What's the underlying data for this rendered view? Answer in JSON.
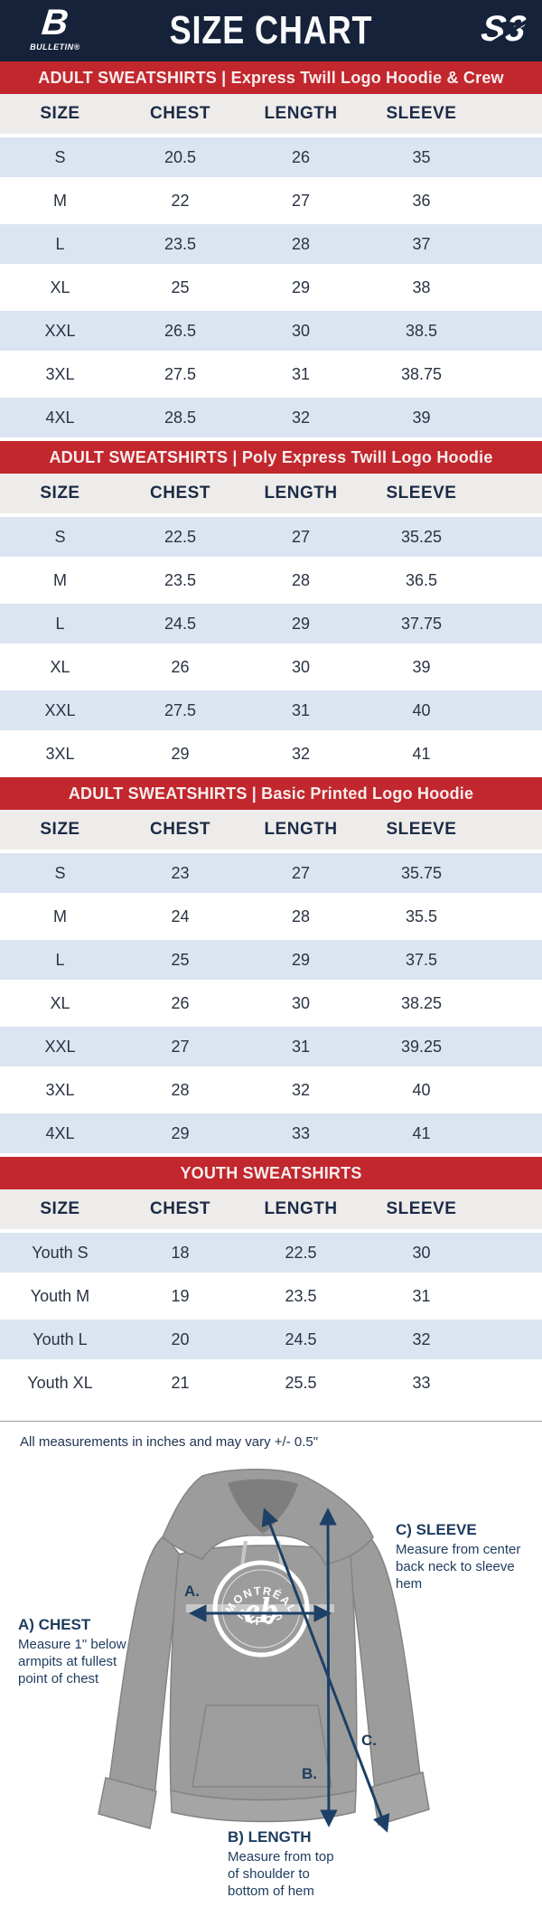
{
  "header": {
    "title": "SIZE CHART",
    "brand_left_mark": "B",
    "brand_left_word": "BULLETIN®",
    "brand_right_mark": "S3"
  },
  "colors": {
    "navy": "#15223a",
    "red": "#c1272d",
    "rowblue": "#dbe5f1",
    "headgray": "#eeecea",
    "textnavy": "#1c2b47",
    "arrow": "#1c4066"
  },
  "columns": [
    "SIZE",
    "CHEST",
    "LENGTH",
    "SLEEVE"
  ],
  "sections": [
    {
      "title": "ADULT SWEATSHIRTS | Express Twill Logo Hoodie & Crew",
      "rows": [
        [
          "S",
          "20.5",
          "26",
          "35"
        ],
        [
          "M",
          "22",
          "27",
          "36"
        ],
        [
          "L",
          "23.5",
          "28",
          "37"
        ],
        [
          "XL",
          "25",
          "29",
          "38"
        ],
        [
          "XXL",
          "26.5",
          "30",
          "38.5"
        ],
        [
          "3XL",
          "27.5",
          "31",
          "38.75"
        ],
        [
          "4XL",
          "28.5",
          "32",
          "39"
        ]
      ]
    },
    {
      "title": "ADULT SWEATSHIRTS | Poly Express Twill Logo Hoodie",
      "rows": [
        [
          "S",
          "22.5",
          "27",
          "35.25"
        ],
        [
          "M",
          "23.5",
          "28",
          "36.5"
        ],
        [
          "L",
          "24.5",
          "29",
          "37.75"
        ],
        [
          "XL",
          "26",
          "30",
          "39"
        ],
        [
          "XXL",
          "27.5",
          "31",
          "40"
        ],
        [
          "3XL",
          "29",
          "32",
          "41"
        ]
      ]
    },
    {
      "title": "ADULT SWEATSHIRTS | Basic Printed Logo Hoodie",
      "rows": [
        [
          "S",
          "23",
          "27",
          "35.75"
        ],
        [
          "M",
          "24",
          "28",
          "35.5"
        ],
        [
          "L",
          "25",
          "29",
          "37.5"
        ],
        [
          "XL",
          "26",
          "30",
          "38.25"
        ],
        [
          "XXL",
          "27",
          "31",
          "39.25"
        ],
        [
          "3XL",
          "28",
          "32",
          "40"
        ],
        [
          "4XL",
          "29",
          "33",
          "41"
        ]
      ]
    },
    {
      "title": "YOUTH SWEATSHIRTS",
      "rows": [
        [
          "Youth S",
          "18",
          "22.5",
          "30"
        ],
        [
          "Youth M",
          "19",
          "23.5",
          "31"
        ],
        [
          "Youth L",
          "20",
          "24.5",
          "32"
        ],
        [
          "Youth XL",
          "21",
          "25.5",
          "33"
        ]
      ]
    }
  ],
  "footnote": "All measurements in inches and may vary +/- 0.5\"",
  "diagram": {
    "logo": {
      "top_text": "MONTRÉAL",
      "bottom_text": "EXPOS",
      "center_text": "eb"
    },
    "markers": {
      "chest": "A.",
      "length": "B.",
      "sleeve": "C."
    },
    "annotations": {
      "chest": {
        "title": "A) CHEST",
        "body": "Measure 1\" below\narmpits at fullest\npoint of chest"
      },
      "length": {
        "title": "B) LENGTH",
        "body": "Measure from top\nof shoulder to\nbottom of hem"
      },
      "sleeve": {
        "title": "C) SLEEVE",
        "body": "Measure from center\nback neck to sleeve hem"
      }
    }
  }
}
